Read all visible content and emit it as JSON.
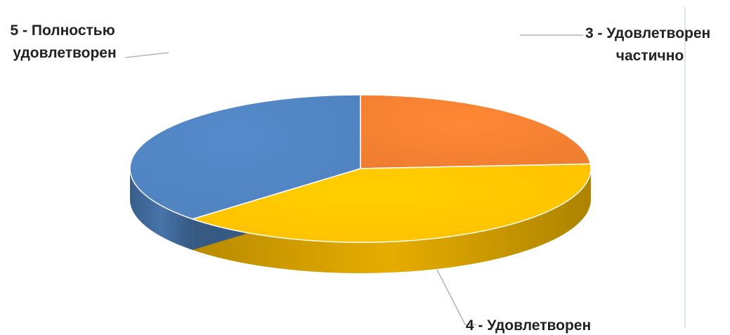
{
  "chart_data": {
    "type": "pie",
    "style": "3d",
    "slices": [
      {
        "label_lines": [
          "3 - Удовлетворен",
          "частично"
        ],
        "value": 24,
        "color": "#ED7D31"
      },
      {
        "label_lines": [
          "4 - Удовлетворен"
        ],
        "value": 39,
        "color": "#FFC000"
      },
      {
        "label_lines": [
          "5 - Полностью",
          "удовлетворен"
        ],
        "value": 37,
        "color": "#4F81BD"
      }
    ],
    "legend": "none",
    "data_labels": "category names with leader lines"
  }
}
